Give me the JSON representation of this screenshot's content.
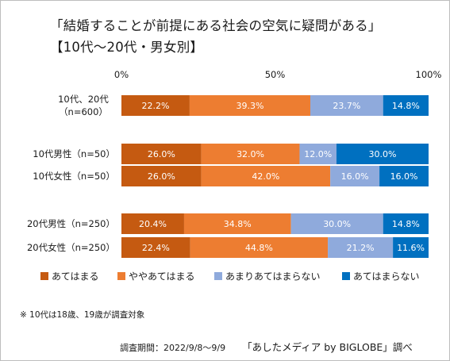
{
  "title": {
    "line1": "「結婚することが前提にある社会の空気に疑問がある」",
    "line2": "【10代～20代・男女別】"
  },
  "chart_data": {
    "type": "bar",
    "stacked": true,
    "orientation": "horizontal",
    "xlim": [
      0,
      100
    ],
    "x_ticks": [
      "0%",
      "50%",
      "100%"
    ],
    "categories": [
      [
        "10代、20代",
        "（n=600）"
      ],
      [
        "10代男性（n=50）"
      ],
      [
        "10代女性（n=50）"
      ],
      [
        "20代男性（n=250）"
      ],
      [
        "20代女性（n=250）"
      ]
    ],
    "series": [
      {
        "name": "あてはまる",
        "color": "#c55a11",
        "values": [
          22.2,
          26.0,
          26.0,
          20.4,
          22.4
        ]
      },
      {
        "name": "ややあてはまる",
        "color": "#ed7d31",
        "values": [
          39.3,
          32.0,
          42.0,
          34.8,
          44.8
        ]
      },
      {
        "name": "あまりあてはまらない",
        "color": "#8faadc",
        "values": [
          23.7,
          12.0,
          16.0,
          30.0,
          21.2
        ]
      },
      {
        "name": "あてはまらない",
        "color": "#0070c0",
        "values": [
          14.8,
          30.0,
          16.0,
          14.8,
          11.6
        ]
      }
    ],
    "legend_position": "bottom"
  },
  "footnote": "※ 10代は18歳、19歳が調査対象",
  "source": {
    "period": "調査期間：2022/9/8～9/9",
    "credit": "「あしたメディア by BIGLOBE」調べ"
  }
}
